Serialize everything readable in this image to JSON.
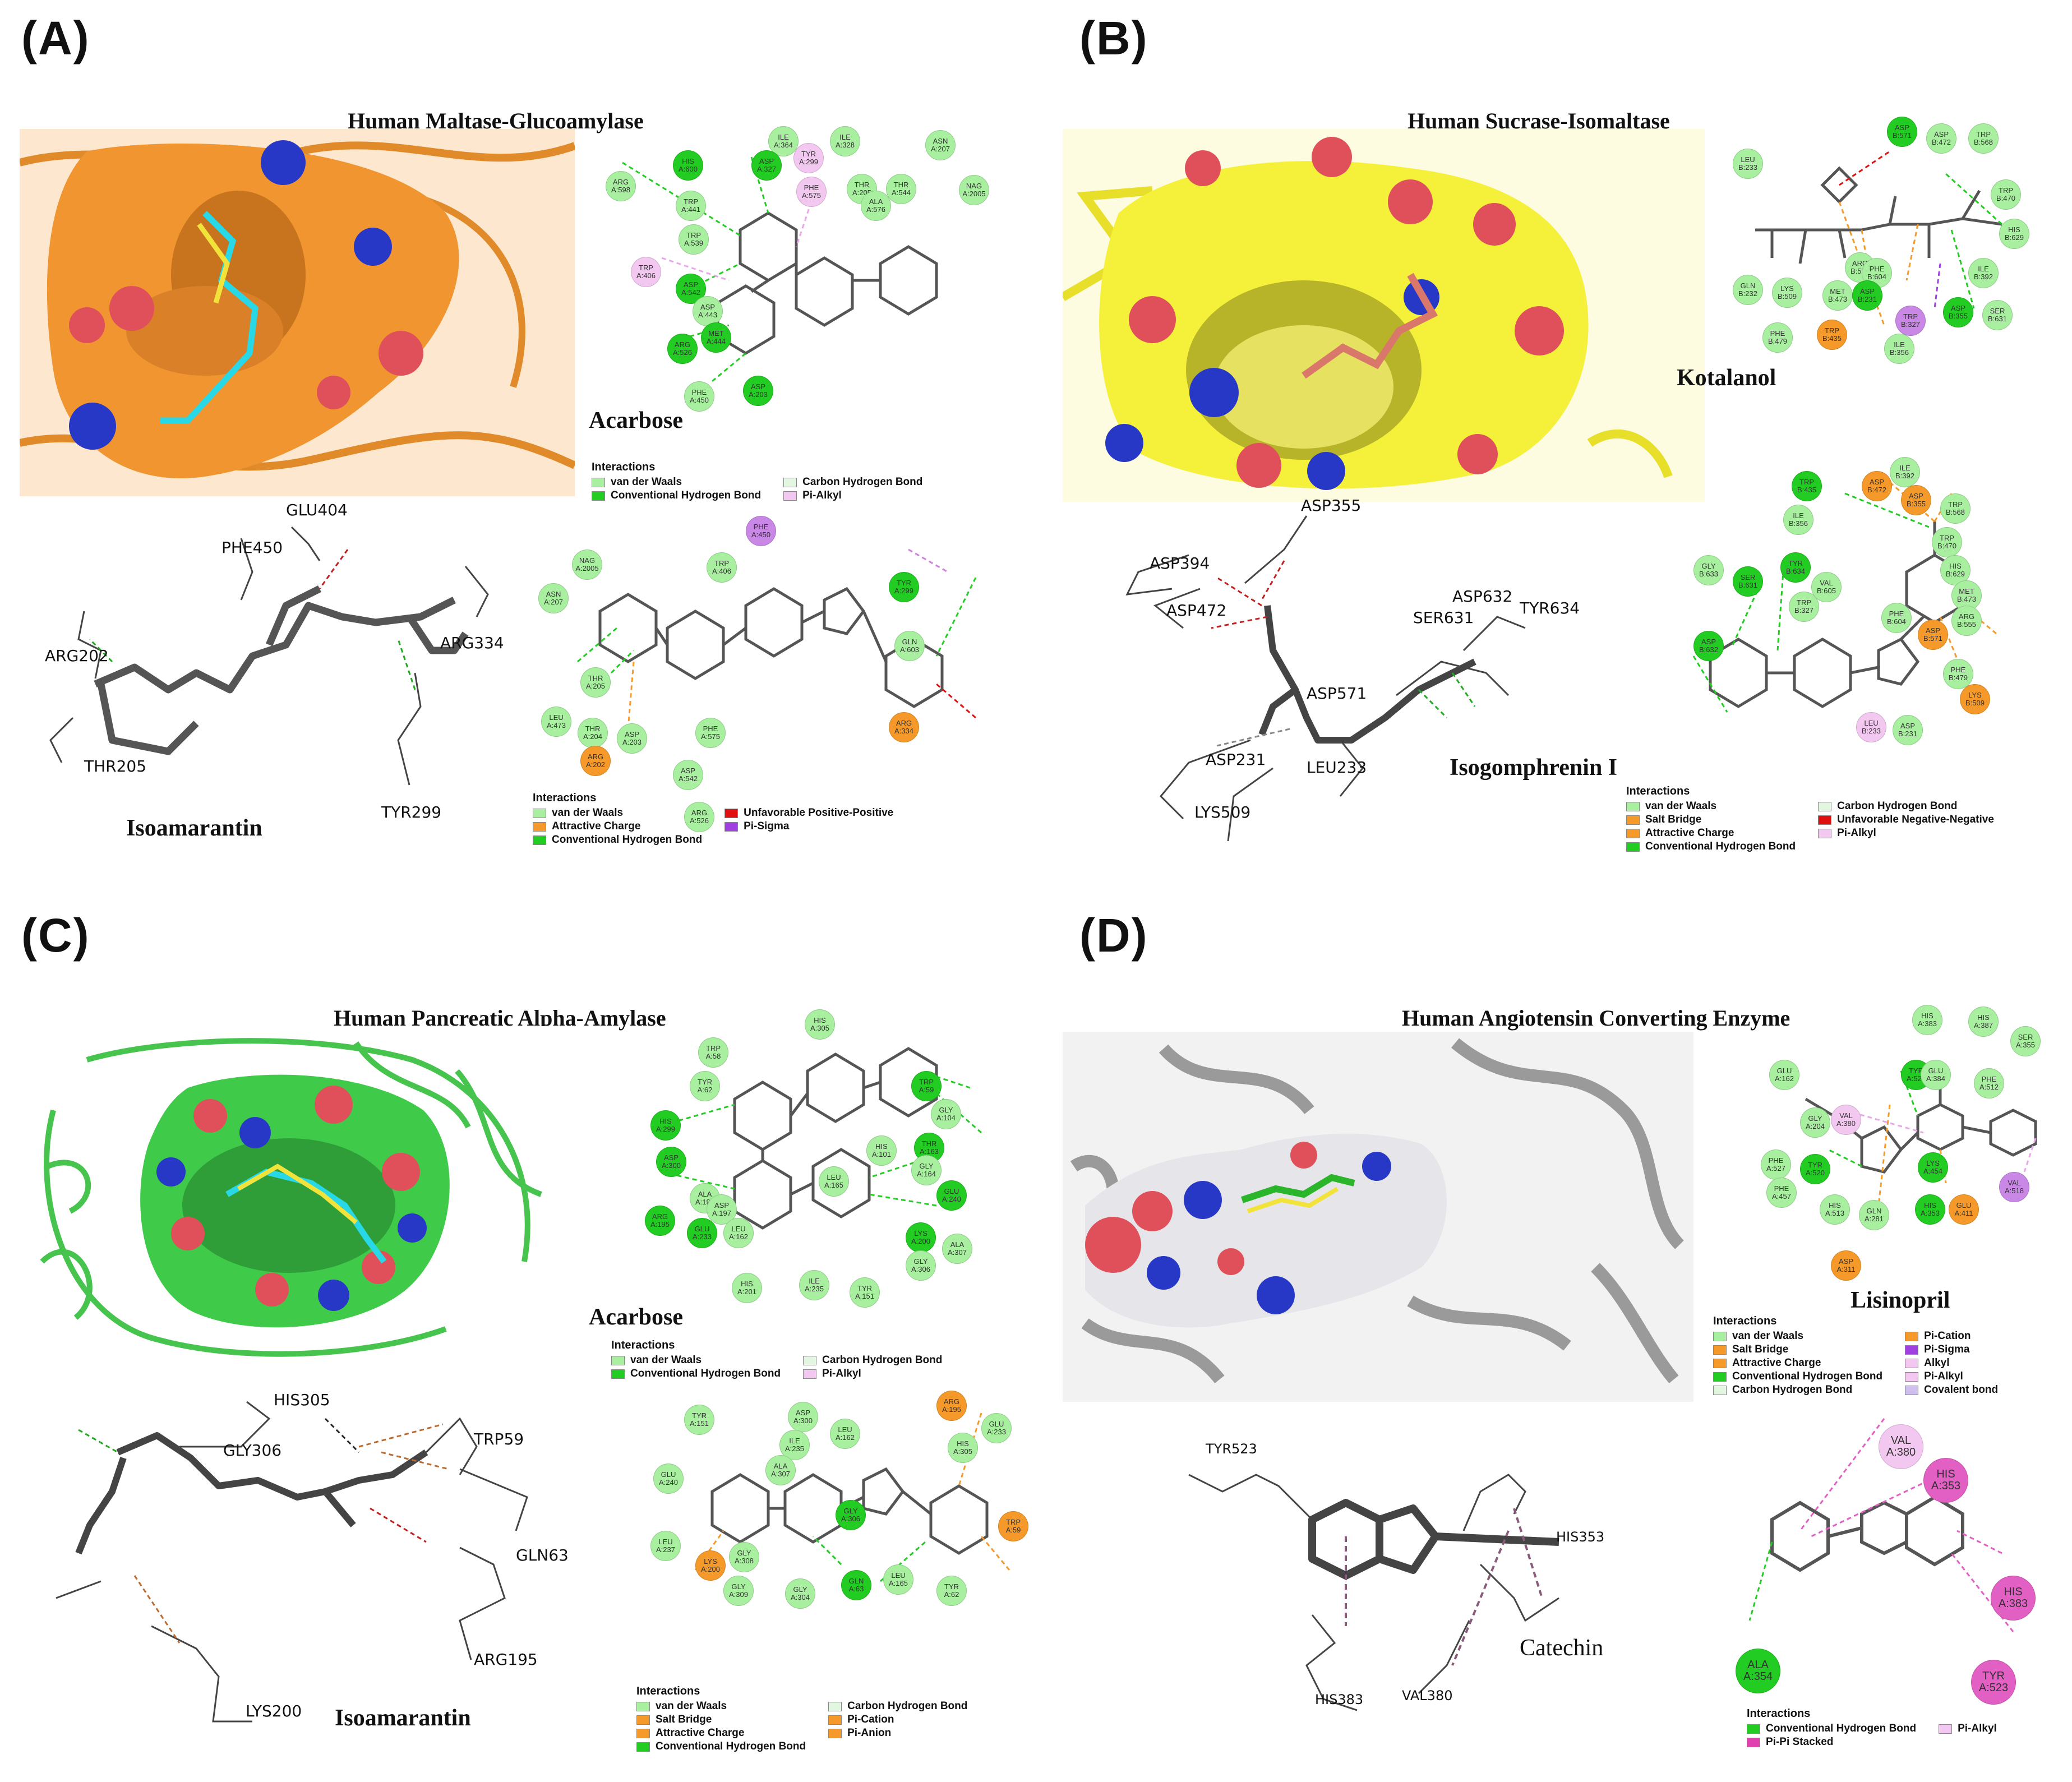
{
  "panels": [
    {
      "label": "(A)",
      "title": "Human Maltase-Glucoamylase",
      "protein_color": "#f0952f",
      "ligand1": "Acarbose",
      "ligand2": "Isoamarantin",
      "legend1": [
        {
          "text": "van der Waals",
          "color": "#a8f0a0"
        },
        {
          "text": "Conventional Hydrogen Bond",
          "color": "#22cc22"
        },
        {
          "text": "Carbon Hydrogen Bond",
          "color": "#e2f6e2"
        },
        {
          "text": "Pi-Alkyl",
          "color": "#f3c8f0"
        }
      ],
      "legend2": [
        {
          "text": "van der Waals",
          "color": "#a8f0a0"
        },
        {
          "text": "Attractive Charge",
          "color": "#f59a2a"
        },
        {
          "text": "Conventional Hydrogen Bond",
          "color": "#22cc22"
        },
        {
          "text": "Unfavorable Positive-Positive",
          "color": "#e01010"
        },
        {
          "text": "Pi-Sigma",
          "color": "#a040e0"
        }
      ],
      "residues2d_top": [
        {
          "n": "ARG",
          "id": "A:598",
          "c": "#a8f0a0"
        },
        {
          "n": "HIS",
          "id": "A:600",
          "c": "#22cc22"
        },
        {
          "n": "ILE",
          "id": "A:364",
          "c": "#a8f0a0"
        },
        {
          "n": "ASP",
          "id": "A:327",
          "c": "#22cc22"
        },
        {
          "n": "ILE",
          "id": "A:328",
          "c": "#a8f0a0"
        },
        {
          "n": "TYR",
          "id": "A:299",
          "c": "#f3c8f0"
        },
        {
          "n": "ASN",
          "id": "A:207",
          "c": "#a8f0a0"
        },
        {
          "n": "TRP",
          "id": "A:441",
          "c": "#a8f0a0"
        },
        {
          "n": "PHE",
          "id": "A:575",
          "c": "#f3c8f0"
        },
        {
          "n": "THR",
          "id": "A:205",
          "c": "#a8f0a0"
        },
        {
          "n": "THR",
          "id": "A:544",
          "c": "#a8f0a0"
        },
        {
          "n": "ALA",
          "id": "A:576",
          "c": "#a8f0a0"
        },
        {
          "n": "NAG",
          "id": "A:2005",
          "c": "#a8f0a0"
        },
        {
          "n": "TRP",
          "id": "A:539",
          "c": "#a8f0a0"
        },
        {
          "n": "TRP",
          "id": "A:406",
          "c": "#f3c8f0"
        },
        {
          "n": "ASP",
          "id": "A:542",
          "c": "#22cc22"
        },
        {
          "n": "ASP",
          "id": "A:443",
          "c": "#a8f0a0"
        },
        {
          "n": "MET",
          "id": "A:444",
          "c": "#22cc22"
        },
        {
          "n": "ARG",
          "id": "A:526",
          "c": "#22cc22"
        },
        {
          "n": "PHE",
          "id": "A:450",
          "c": "#a8f0a0"
        },
        {
          "n": "ASP",
          "id": "A:203",
          "c": "#22cc22"
        }
      ],
      "residues2d_bottom": [
        {
          "n": "PHE",
          "id": "A:450",
          "c": "#c987e6"
        },
        {
          "n": "NAG",
          "id": "A:2005",
          "c": "#a8f0a0"
        },
        {
          "n": "TRP",
          "id": "A:406",
          "c": "#a8f0a0"
        },
        {
          "n": "TYR",
          "id": "A:299",
          "c": "#22cc22"
        },
        {
          "n": "ASN",
          "id": "A:207",
          "c": "#a8f0a0"
        },
        {
          "n": "GLN",
          "id": "A:603",
          "c": "#a8f0a0"
        },
        {
          "n": "THR",
          "id": "A:205",
          "c": "#a8f0a0"
        },
        {
          "n": "LEU",
          "id": "A:473",
          "c": "#a8f0a0"
        },
        {
          "n": "THR",
          "id": "A:204",
          "c": "#a8f0a0"
        },
        {
          "n": "ASP",
          "id": "A:203",
          "c": "#a8f0a0"
        },
        {
          "n": "PHE",
          "id": "A:575",
          "c": "#a8f0a0"
        },
        {
          "n": "ARG",
          "id": "A:334",
          "c": "#f59a2a"
        },
        {
          "n": "ARG",
          "id": "A:202",
          "c": "#f59a2a"
        },
        {
          "n": "ASP",
          "id": "A:542",
          "c": "#a8f0a0"
        },
        {
          "n": "ARG",
          "id": "A:526",
          "c": "#a8f0a0"
        }
      ],
      "residues3d": [
        "GLU404",
        "PHE450",
        "ARG202",
        "ARG334",
        "THR205",
        "TYR299"
      ]
    },
    {
      "label": "(B)",
      "title": "Human Sucrase-Isomaltase",
      "protein_color": "#f5f03a",
      "ligand1": "Kotalanol",
      "ligand2": "Isogomphrenin I",
      "legend2": [
        {
          "text": "van der Waals",
          "color": "#a8f0a0"
        },
        {
          "text": "Salt Bridge",
          "color": "#f59a2a"
        },
        {
          "text": "Attractive Charge",
          "color": "#f59a2a"
        },
        {
          "text": "Conventional Hydrogen Bond",
          "color": "#22cc22"
        },
        {
          "text": "Carbon Hydrogen Bond",
          "color": "#e2f6e2"
        },
        {
          "text": "Unfavorable Negative-Negative",
          "color": "#e01010"
        },
        {
          "text": "Pi-Alkyl",
          "color": "#f3c8f0"
        }
      ],
      "residues2d_top": [
        {
          "n": "ASP",
          "id": "B:571",
          "c": "#22cc22"
        },
        {
          "n": "ASP",
          "id": "B:472",
          "c": "#a8f0a0"
        },
        {
          "n": "TRP",
          "id": "B:568",
          "c": "#a8f0a0"
        },
        {
          "n": "LEU",
          "id": "B:233",
          "c": "#a8f0a0"
        },
        {
          "n": "TRP",
          "id": "B:470",
          "c": "#a8f0a0"
        },
        {
          "n": "HIS",
          "id": "B:629",
          "c": "#a8f0a0"
        },
        {
          "n": "ILE",
          "id": "B:392",
          "c": "#a8f0a0"
        },
        {
          "n": "GLN",
          "id": "B:232",
          "c": "#a8f0a0"
        },
        {
          "n": "LYS",
          "id": "B:509",
          "c": "#a8f0a0"
        },
        {
          "n": "ARG",
          "id": "B:555",
          "c": "#a8f0a0"
        },
        {
          "n": "PHE",
          "id": "B:604",
          "c": "#a8f0a0"
        },
        {
          "n": "MET",
          "id": "B:473",
          "c": "#a8f0a0"
        },
        {
          "n": "ASP",
          "id": "B:231",
          "c": "#22cc22"
        },
        {
          "n": "TRP",
          "id": "B:327",
          "c": "#c987e6"
        },
        {
          "n": "ASP",
          "id": "B:355",
          "c": "#22cc22"
        },
        {
          "n": "SER",
          "id": "B:631",
          "c": "#a8f0a0"
        },
        {
          "n": "PHE",
          "id": "B:479",
          "c": "#a8f0a0"
        },
        {
          "n": "TRP",
          "id": "B:435",
          "c": "#f59a2a"
        },
        {
          "n": "ILE",
          "id": "B:356",
          "c": "#a8f0a0"
        }
      ],
      "residues2d_bottom": [
        {
          "n": "TRP",
          "id": "B:435",
          "c": "#22cc22"
        },
        {
          "n": "ASP",
          "id": "B:472",
          "c": "#f59a2a"
        },
        {
          "n": "ILE",
          "id": "B:392",
          "c": "#a8f0a0"
        },
        {
          "n": "ASP",
          "id": "B:355",
          "c": "#f59a2a"
        },
        {
          "n": "TRP",
          "id": "B:568",
          "c": "#a8f0a0"
        },
        {
          "n": "ILE",
          "id": "B:356",
          "c": "#a8f0a0"
        },
        {
          "n": "TRP",
          "id": "B:470",
          "c": "#a8f0a0"
        },
        {
          "n": "GLY",
          "id": "B:633",
          "c": "#a8f0a0"
        },
        {
          "n": "SER",
          "id": "B:631",
          "c": "#22cc22"
        },
        {
          "n": "TYR",
          "id": "B:634",
          "c": "#22cc22"
        },
        {
          "n": "VAL",
          "id": "B:605",
          "c": "#a8f0a0"
        },
        {
          "n": "HIS",
          "id": "B:629",
          "c": "#a8f0a0"
        },
        {
          "n": "MET",
          "id": "B:473",
          "c": "#a8f0a0"
        },
        {
          "n": "TRP",
          "id": "B:327",
          "c": "#a8f0a0"
        },
        {
          "n": "ARG",
          "id": "B:555",
          "c": "#a8f0a0"
        },
        {
          "n": "ASP",
          "id": "B:632",
          "c": "#22cc22"
        },
        {
          "n": "PHE",
          "id": "B:604",
          "c": "#a8f0a0"
        },
        {
          "n": "ASP",
          "id": "B:571",
          "c": "#f59a2a"
        },
        {
          "n": "PHE",
          "id": "B:479",
          "c": "#a8f0a0"
        },
        {
          "n": "LYS",
          "id": "B:509",
          "c": "#f59a2a"
        },
        {
          "n": "LEU",
          "id": "B:233",
          "c": "#f3c8f0"
        },
        {
          "n": "ASP",
          "id": "B:231",
          "c": "#a8f0a0"
        }
      ],
      "residues3d": [
        "ASP355",
        "ASP394",
        "ASP472",
        "ASP632",
        "SER631",
        "TYR634",
        "ASP571",
        "ASP231",
        "LEU233",
        "LYS509"
      ]
    },
    {
      "label": "(C)",
      "title": "Human Pancreatic Alpha-Amylase",
      "protein_color": "#3fca4a",
      "ligand1": "Acarbose",
      "ligand2": "Isoamarantin",
      "legend1": [
        {
          "text": "van der Waals",
          "color": "#a8f0a0"
        },
        {
          "text": "Conventional Hydrogen Bond",
          "color": "#22cc22"
        },
        {
          "text": "Carbon Hydrogen Bond",
          "color": "#e2f6e2"
        },
        {
          "text": "Pi-Alkyl",
          "color": "#f3c8f0"
        }
      ],
      "legend2": [
        {
          "text": "van der Waals",
          "color": "#a8f0a0"
        },
        {
          "text": "Salt Bridge",
          "color": "#f59a2a"
        },
        {
          "text": "Attractive Charge",
          "color": "#f59a2a"
        },
        {
          "text": "Conventional Hydrogen Bond",
          "color": "#22cc22"
        },
        {
          "text": "Carbon Hydrogen Bond",
          "color": "#e2f6e2"
        },
        {
          "text": "Pi-Cation",
          "color": "#f59a2a"
        },
        {
          "text": "Pi-Anion",
          "color": "#f59a2a"
        }
      ],
      "residues2d_top": [
        {
          "n": "HIS",
          "id": "A:305",
          "c": "#a8f0a0"
        },
        {
          "n": "TRP",
          "id": "A:58",
          "c": "#a8f0a0"
        },
        {
          "n": "TYR",
          "id": "A:62",
          "c": "#a8f0a0"
        },
        {
          "n": "TRP",
          "id": "A:59",
          "c": "#22cc22"
        },
        {
          "n": "GLY",
          "id": "A:104",
          "c": "#a8f0a0"
        },
        {
          "n": "HIS",
          "id": "A:299",
          "c": "#22cc22"
        },
        {
          "n": "THR",
          "id": "A:163",
          "c": "#22cc22"
        },
        {
          "n": "ASP",
          "id": "A:300",
          "c": "#22cc22"
        },
        {
          "n": "LEU",
          "id": "A:165",
          "c": "#a8f0a0"
        },
        {
          "n": "HIS",
          "id": "A:101",
          "c": "#a8f0a0"
        },
        {
          "n": "GLY",
          "id": "A:164",
          "c": "#a8f0a0"
        },
        {
          "n": "ALA",
          "id": "A:198",
          "c": "#a8f0a0"
        },
        {
          "n": "ASP",
          "id": "A:197",
          "c": "#a8f0a0"
        },
        {
          "n": "GLU",
          "id": "A:240",
          "c": "#22cc22"
        },
        {
          "n": "ARG",
          "id": "A:195",
          "c": "#22cc22"
        },
        {
          "n": "GLU",
          "id": "A:233",
          "c": "#22cc22"
        },
        {
          "n": "LEU",
          "id": "A:162",
          "c": "#a8f0a0"
        },
        {
          "n": "LYS",
          "id": "A:200",
          "c": "#22cc22"
        },
        {
          "n": "ALA",
          "id": "A:307",
          "c": "#a8f0a0"
        },
        {
          "n": "GLY",
          "id": "A:306",
          "c": "#a8f0a0"
        },
        {
          "n": "HIS",
          "id": "A:201",
          "c": "#a8f0a0"
        },
        {
          "n": "ILE",
          "id": "A:235",
          "c": "#a8f0a0"
        },
        {
          "n": "TYR",
          "id": "A:151",
          "c": "#a8f0a0"
        }
      ],
      "residues2d_bottom": [
        {
          "n": "TYR",
          "id": "A:151",
          "c": "#a8f0a0"
        },
        {
          "n": "ASP",
          "id": "A:300",
          "c": "#a8f0a0"
        },
        {
          "n": "ARG",
          "id": "A:195",
          "c": "#f59a2a"
        },
        {
          "n": "GLU",
          "id": "A:233",
          "c": "#a8f0a0"
        },
        {
          "n": "ILE",
          "id": "A:235",
          "c": "#a8f0a0"
        },
        {
          "n": "LEU",
          "id": "A:162",
          "c": "#a8f0a0"
        },
        {
          "n": "HIS",
          "id": "A:305",
          "c": "#a8f0a0"
        },
        {
          "n": "GLU",
          "id": "A:240",
          "c": "#a8f0a0"
        },
        {
          "n": "ALA",
          "id": "A:307",
          "c": "#a8f0a0"
        },
        {
          "n": "LEU",
          "id": "A:237",
          "c": "#a8f0a0"
        },
        {
          "n": "GLY",
          "id": "A:306",
          "c": "#22cc22"
        },
        {
          "n": "TRP",
          "id": "A:59",
          "c": "#f59a2a"
        },
        {
          "n": "LYS",
          "id": "A:200",
          "c": "#f59a2a"
        },
        {
          "n": "GLY",
          "id": "A:308",
          "c": "#a8f0a0"
        },
        {
          "n": "GLY",
          "id": "A:309",
          "c": "#a8f0a0"
        },
        {
          "n": "GLY",
          "id": "A:304",
          "c": "#a8f0a0"
        },
        {
          "n": "GLN",
          "id": "A:63",
          "c": "#22cc22"
        },
        {
          "n": "LEU",
          "id": "A:165",
          "c": "#a8f0a0"
        },
        {
          "n": "TYR",
          "id": "A:62",
          "c": "#a8f0a0"
        }
      ],
      "residues3d": [
        "HIS305",
        "GLY306",
        "TRP59",
        "GLN63",
        "ARG195",
        "LYS200"
      ]
    },
    {
      "label": "(D)",
      "title": "Human Angiotensin Converting Enzyme",
      "protein_color": "#c8c8c8",
      "ligand1": "Lisinopril",
      "ligand2": "Catechin",
      "legend1": [
        {
          "text": "van der Waals",
          "color": "#a8f0a0"
        },
        {
          "text": "Salt Bridge",
          "color": "#f59a2a"
        },
        {
          "text": "Attractive Charge",
          "color": "#f59a2a"
        },
        {
          "text": "Conventional Hydrogen Bond",
          "color": "#22cc22"
        },
        {
          "text": "Carbon Hydrogen Bond",
          "color": "#e2f6e2"
        },
        {
          "text": "Pi-Cation",
          "color": "#f59a2a"
        },
        {
          "text": "Pi-Sigma",
          "color": "#a040e0"
        },
        {
          "text": "Alkyl",
          "color": "#f3c8f0"
        },
        {
          "text": "Pi-Alkyl",
          "color": "#f3c8f0"
        },
        {
          "text": "Covalent bond",
          "color": "#d0c0f0"
        }
      ],
      "legend2": [
        {
          "text": "Conventional Hydrogen Bond",
          "color": "#22cc22"
        },
        {
          "text": "Pi-Pi Stacked",
          "color": "#e040b0"
        },
        {
          "text": "Pi-Alkyl",
          "color": "#f3c8f0"
        }
      ],
      "residues2d_top": [
        {
          "n": "HIS",
          "id": "A:383",
          "c": "#a8f0a0"
        },
        {
          "n": "HIS",
          "id": "A:387",
          "c": "#a8f0a0"
        },
        {
          "n": "SER",
          "id": "A:355",
          "c": "#a8f0a0"
        },
        {
          "n": "GLU",
          "id": "A:162",
          "c": "#a8f0a0"
        },
        {
          "n": "TYR",
          "id": "A:523",
          "c": "#22cc22"
        },
        {
          "n": "GLU",
          "id": "A:384",
          "c": "#a8f0a0"
        },
        {
          "n": "PHE",
          "id": "A:512",
          "c": "#a8f0a0"
        },
        {
          "n": "GLY",
          "id": "A:204",
          "c": "#a8f0a0"
        },
        {
          "n": "VAL",
          "id": "A:380",
          "c": "#f3c8f0"
        },
        {
          "n": "PHE",
          "id": "A:527",
          "c": "#a8f0a0"
        },
        {
          "n": "TYR",
          "id": "A:520",
          "c": "#22cc22"
        },
        {
          "n": "PHE",
          "id": "A:457",
          "c": "#a8f0a0"
        },
        {
          "n": "LYS",
          "id": "A:454",
          "c": "#22cc22"
        },
        {
          "n": "VAL",
          "id": "A:518",
          "c": "#c987e6"
        },
        {
          "n": "HIS",
          "id": "A:513",
          "c": "#a8f0a0"
        },
        {
          "n": "GLN",
          "id": "A:281",
          "c": "#a8f0a0"
        },
        {
          "n": "HIS",
          "id": "A:353",
          "c": "#22cc22"
        },
        {
          "n": "GLU",
          "id": "A:411",
          "c": "#f59a2a"
        },
        {
          "n": "ASP",
          "id": "A:311",
          "c": "#f59a2a"
        }
      ],
      "residues2d_bottom": [
        {
          "n": "VAL",
          "id": "A:380",
          "c": "#f3c8f0"
        },
        {
          "n": "HIS",
          "id": "A:353",
          "c": "#e25fc4"
        },
        {
          "n": "ALA",
          "id": "A:354",
          "c": "#22cc22"
        },
        {
          "n": "HIS",
          "id": "A:383",
          "c": "#e25fc4"
        },
        {
          "n": "TYR",
          "id": "A:523",
          "c": "#e25fc4"
        }
      ],
      "residues3d": [
        "TYR523",
        "HIS353",
        "HIS383",
        "VAL380"
      ]
    }
  ],
  "legend_heading": "Interactions"
}
